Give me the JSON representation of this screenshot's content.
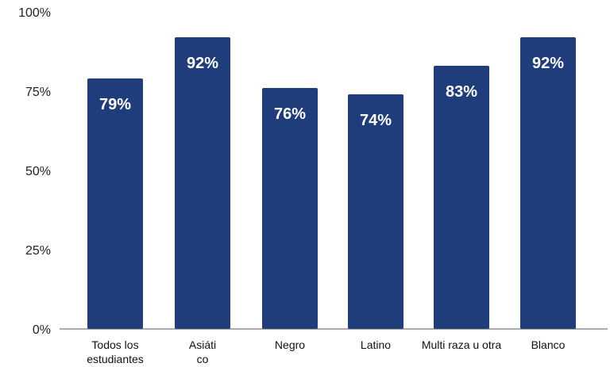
{
  "chart_data": {
    "type": "bar",
    "categories": [
      [
        "Todos los",
        "estudiantes"
      ],
      [
        "Asiáti",
        "co"
      ],
      [
        "Negro"
      ],
      [
        "Latino"
      ],
      [
        "Multi raza u otra"
      ],
      [
        "Blanco"
      ]
    ],
    "values": [
      79,
      92,
      76,
      74,
      83,
      92
    ],
    "data_labels": [
      "79%",
      "92%",
      "76%",
      "74%",
      "83%",
      "92%"
    ],
    "y_ticks": [
      "0%",
      "25%",
      "50%",
      "75%",
      "100%"
    ],
    "ylim": [
      0,
      100
    ],
    "grid": false,
    "bar_color": "#1f3d7a",
    "axis_color": "#555555"
  }
}
